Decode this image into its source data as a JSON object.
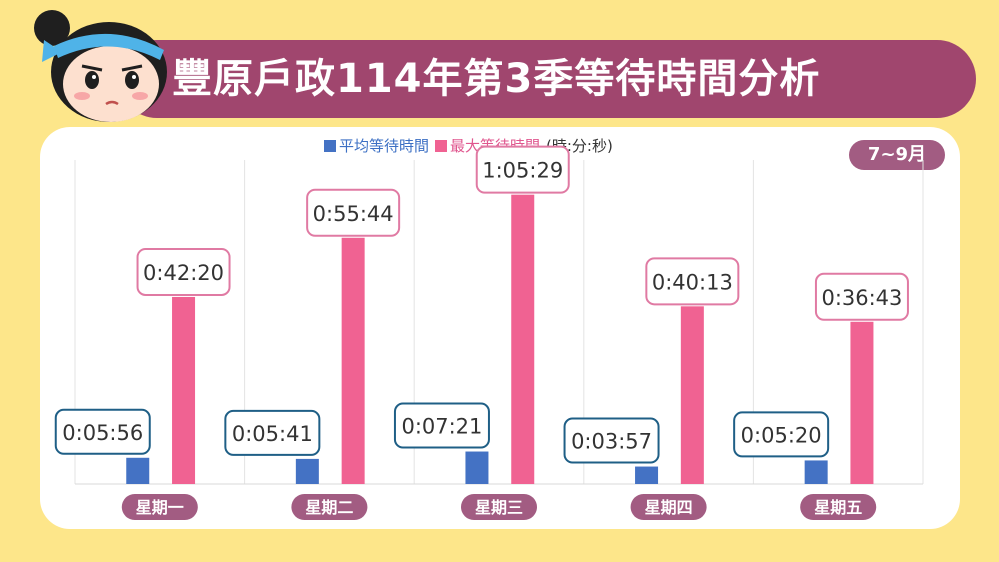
{
  "header": {
    "title": "豐原戶政114年第3季等待時間分析",
    "period_badge": "7~9月"
  },
  "legend": {
    "avg_label": "平均等待時間",
    "max_label": "最大等待時間",
    "unit_note": "(時:分:秒)"
  },
  "colors": {
    "background": "#fde68a",
    "banner": "#a0466e",
    "avg_series": "#4472c4",
    "max_series": "#f06292",
    "avg_label_border": "#1f5f86",
    "max_label_border": "#e07aa3",
    "day_pill": "#a25c82"
  },
  "chart_data": {
    "type": "bar",
    "unit": "時:分:秒",
    "categories": [
      "星期一",
      "星期二",
      "星期三",
      "星期四",
      "星期五"
    ],
    "series": [
      {
        "name": "平均等待時間",
        "values": [
          356,
          341,
          441,
          237,
          320
        ],
        "labels": [
          "0:05:56",
          "0:05:41",
          "0:07:21",
          "0:03:57",
          "0:05:20"
        ]
      },
      {
        "name": "最大等待時間",
        "values": [
          2540,
          3344,
          3929,
          2413,
          2203
        ],
        "labels": [
          "0:42:20",
          "0:55:44",
          "1:05:29",
          "0:40:13",
          "0:36:43"
        ]
      }
    ],
    "ylim": [
      0,
      4400
    ],
    "grid": "vertical",
    "legend_position": "top-center"
  }
}
